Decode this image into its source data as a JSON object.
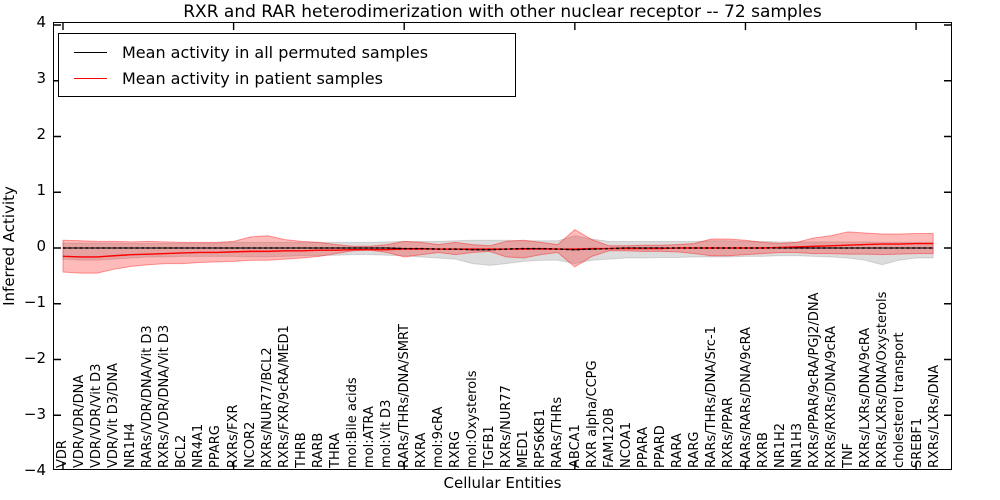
{
  "title": "RXR and RAR heterodimerization with other nuclear receptor -- 72 samples",
  "axes": {
    "xlabel": "Cellular Entities",
    "ylabel": "Inferred Activity",
    "yticks": [
      4,
      3,
      2,
      1,
      0,
      -1,
      -2,
      -3,
      -4
    ],
    "ytick_labels": [
      "4",
      "3",
      "2",
      "1",
      "0",
      "−1",
      "−2",
      "−3",
      "−4"
    ]
  },
  "legend": {
    "items": [
      {
        "label": "Mean activity in all permuted samples",
        "color": "#000000"
      },
      {
        "label": "Mean activity in patient samples",
        "color": "#ff0000"
      }
    ]
  },
  "chart_data": {
    "type": "line",
    "title": "RXR and RAR heterodimerization with other nuclear receptor -- 72 samples",
    "xlabel": "Cellular Entities",
    "ylabel": "Inferred Activity",
    "ylim": [
      -4,
      4
    ],
    "grid": false,
    "legend_position": "upper left",
    "xtick_indices": [
      0,
      10,
      20,
      30,
      40,
      50
    ],
    "categories": [
      "VDR",
      "VDR/VDR/DNA",
      "VDR/VDR/Vit D3",
      "VDR/Vit D3/DNA",
      "NR1H4",
      "RARs/VDR/DNA/Vit D3",
      "RXRs/VDR/DNA/Vit D3",
      "BCL2",
      "NR4A1",
      "PPARG",
      "RXRs/FXR",
      "NCOR2",
      "RXRs/NUR77/BCL2",
      "RXRs/FXR/9cRA/MED1",
      "THRB",
      "RARB",
      "THRA",
      "mol:Bile acids",
      "mol:ATRA",
      "mol:Vit D3",
      "RARs/THRs/DNA/SMRT",
      "RXRA",
      "mol:9cRA",
      "RXRG",
      "mol:Oxysterols",
      "TGFB1",
      "RXRs/NUR77",
      "MED1",
      "RPS6KB1",
      "RARs/THRs",
      "ABCA1",
      "RXR alpha/CCPG",
      "FAM120B",
      "NCOA1",
      "PPARA",
      "PPARD",
      "RARA",
      "RARG",
      "RARs/THRs/DNA/Src-1",
      "RXRs/PPAR",
      "RARs/RARs/DNA/9cRA",
      "RXRB",
      "NR1H2",
      "NR1H3",
      "RXRs/PPAR/9cRA/PGJ2/DNA",
      "RXRs/RXRs/DNA/9cRA",
      "TNF",
      "RXRs/LXRs/DNA/9cRA",
      "RXRs/LXRs/DNA/Oxysterols",
      "cholesterol transport",
      "SREBF1",
      "RXRs/LXRs/DNA"
    ],
    "series": [
      {
        "name": "Mean activity in all permuted samples",
        "color": "#000000",
        "band_fill": "rgba(128,128,128,0.28)",
        "band_edge": "rgba(0,0,0,0.12)",
        "values": [
          0,
          0,
          0,
          0,
          0,
          0,
          0,
          0,
          0,
          0,
          0,
          0,
          0,
          0,
          0,
          0,
          0,
          0,
          0,
          0,
          -0.01,
          -0.01,
          -0.02,
          -0.02,
          -0.03,
          -0.03,
          -0.02,
          -0.01,
          -0.01,
          -0.02,
          -0.03,
          -0.02,
          -0.01,
          0,
          0,
          0,
          0,
          0,
          0,
          0,
          0,
          0,
          0,
          0,
          0,
          0,
          0,
          0,
          0,
          0,
          0,
          0
        ],
        "band_upper": [
          0.09,
          0.09,
          0.09,
          0.09,
          0.08,
          0.08,
          0.08,
          0.08,
          0.08,
          0.09,
          0.1,
          0.1,
          0.1,
          0.1,
          0.1,
          0.1,
          0.1,
          0.1,
          0.1,
          0.11,
          0.12,
          0.12,
          0.12,
          0.13,
          0.14,
          0.14,
          0.14,
          0.13,
          0.13,
          0.13,
          0.22,
          0.16,
          0.12,
          0.12,
          0.12,
          0.12,
          0.12,
          0.12,
          0.13,
          0.13,
          0.12,
          0.12,
          0.11,
          0.11,
          0.11,
          0.11,
          0.11,
          0.11,
          0.1,
          0.1,
          0.1,
          0.1
        ],
        "band_lower": [
          -0.2,
          -0.22,
          -0.22,
          -0.2,
          -0.18,
          -0.16,
          -0.16,
          -0.15,
          -0.15,
          -0.15,
          -0.15,
          -0.16,
          -0.16,
          -0.15,
          -0.14,
          -0.14,
          -0.13,
          -0.12,
          -0.12,
          -0.13,
          -0.14,
          -0.16,
          -0.18,
          -0.2,
          -0.28,
          -0.31,
          -0.28,
          -0.24,
          -0.22,
          -0.22,
          -0.28,
          -0.22,
          -0.2,
          -0.18,
          -0.18,
          -0.17,
          -0.17,
          -0.16,
          -0.16,
          -0.16,
          -0.15,
          -0.15,
          -0.14,
          -0.14,
          -0.15,
          -0.16,
          -0.18,
          -0.22,
          -0.3,
          -0.22,
          -0.18,
          -0.18
        ]
      },
      {
        "name": "Mean activity in patient samples",
        "color": "#ff0000",
        "band_fill": "rgba(255,40,40,0.32)",
        "band_edge": "rgba(255,0,0,0.38)",
        "values": [
          -0.15,
          -0.16,
          -0.16,
          -0.14,
          -0.12,
          -0.11,
          -0.1,
          -0.09,
          -0.08,
          -0.08,
          -0.07,
          -0.06,
          -0.06,
          -0.05,
          -0.05,
          -0.04,
          -0.04,
          -0.03,
          -0.03,
          -0.03,
          -0.02,
          -0.02,
          -0.02,
          -0.02,
          -0.02,
          -0.02,
          -0.02,
          -0.02,
          -0.02,
          -0.02,
          -0.02,
          -0.01,
          -0.01,
          -0.01,
          -0.01,
          -0.01,
          0,
          0,
          0,
          0,
          0,
          0,
          0.01,
          0.02,
          0.03,
          0.04,
          0.05,
          0.06,
          0.07,
          0.07,
          0.08,
          0.08
        ],
        "band_upper": [
          0.14,
          0.13,
          0.12,
          0.12,
          0.11,
          0.12,
          0.11,
          0.1,
          0.1,
          0.1,
          0.12,
          0.2,
          0.22,
          0.15,
          0.12,
          0.1,
          0.06,
          0.03,
          0.03,
          0.06,
          0.12,
          0.1,
          0.06,
          0.1,
          0.06,
          0.04,
          0.12,
          0.14,
          0.1,
          0.06,
          0.33,
          0.15,
          0.04,
          0.04,
          0.05,
          0.05,
          0.06,
          0.08,
          0.16,
          0.16,
          0.14,
          0.1,
          0.08,
          0.1,
          0.18,
          0.22,
          0.29,
          0.27,
          0.25,
          0.25,
          0.26,
          0.26
        ],
        "band_lower": [
          -0.43,
          -0.45,
          -0.45,
          -0.38,
          -0.33,
          -0.3,
          -0.28,
          -0.28,
          -0.26,
          -0.25,
          -0.24,
          -0.22,
          -0.22,
          -0.2,
          -0.18,
          -0.15,
          -0.1,
          -0.05,
          -0.04,
          -0.08,
          -0.16,
          -0.12,
          -0.08,
          -0.12,
          -0.08,
          -0.06,
          -0.16,
          -0.18,
          -0.12,
          -0.08,
          -0.34,
          -0.15,
          -0.05,
          -0.05,
          -0.06,
          -0.06,
          -0.07,
          -0.1,
          -0.14,
          -0.14,
          -0.12,
          -0.1,
          -0.08,
          -0.08,
          -0.1,
          -0.1,
          -0.11,
          -0.11,
          -0.12,
          -0.11,
          -0.1,
          -0.1
        ]
      }
    ]
  }
}
